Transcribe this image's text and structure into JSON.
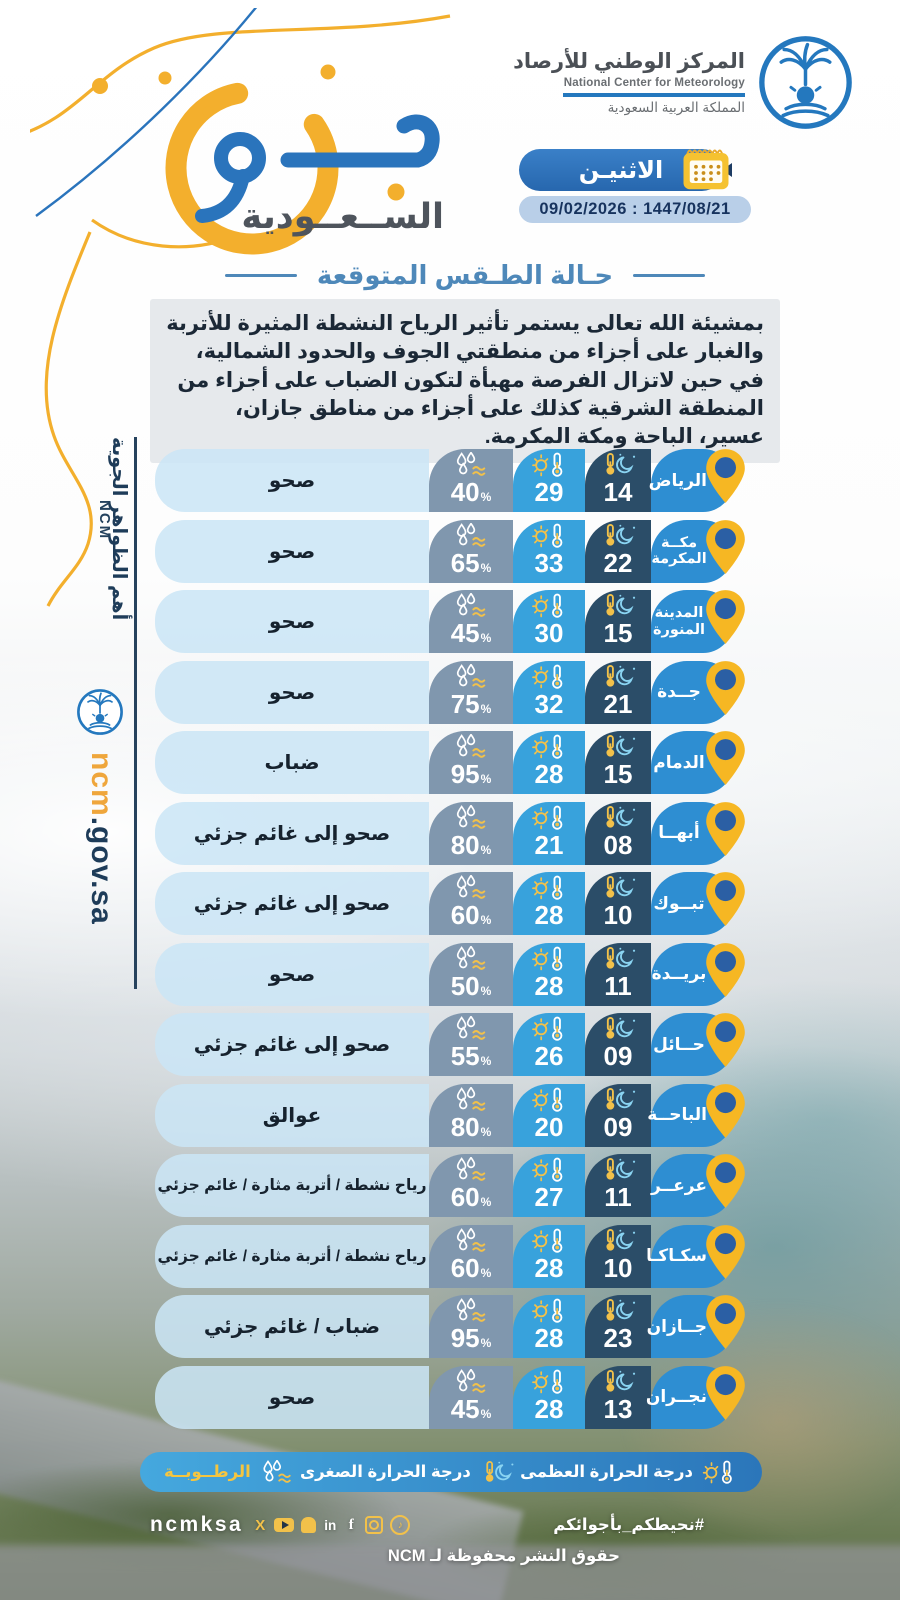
{
  "org": {
    "name_ar": "المركز الوطني للأرصاد",
    "name_en": "National Center for Meteorology",
    "country_ar": "المملكة العربية السعودية"
  },
  "brand": {
    "wordmark": "جو",
    "wordmark_sub": "الســعــودية"
  },
  "date": {
    "day": "الاثنيـن",
    "dates_line": "09/02/2026  :  1447/08/21"
  },
  "section": {
    "title": "حـالة الطـقس المتوقعة"
  },
  "forecast_text": "بمشيئة الله تعالى يستمر تأثير الرياح النشطة المثيرة للأتربة والغبار على أجزاء من منطقتي الجوف والحدود الشمالية، في حين لاتزال الفرصة مهيأة لتكون الضباب على أجزاء من المنطقة الشرقية كذلك على  أجزاء من مناطق جازان، عسير، الباحة ومكة المكرمة.",
  "sidebar": {
    "heading": "أهم الظواهر الجوية",
    "ncm": "NCM",
    "site_prefix": "ncm",
    "site_suffix": ".gov.sa"
  },
  "units": {
    "percent": "%"
  },
  "rows": [
    {
      "city": "الرياض",
      "min": "14",
      "max": "29",
      "humidity": "40",
      "condition": "صحو"
    },
    {
      "city": "مكــة\nالمكرمة",
      "min": "22",
      "max": "33",
      "humidity": "65",
      "condition": "صحو"
    },
    {
      "city": "المدينة\nالمنورة",
      "min": "15",
      "max": "30",
      "humidity": "45",
      "condition": "صحو"
    },
    {
      "city": "جــدة",
      "min": "21",
      "max": "32",
      "humidity": "75",
      "condition": "صحو"
    },
    {
      "city": "الدمام",
      "min": "15",
      "max": "28",
      "humidity": "95",
      "condition": "ضباب"
    },
    {
      "city": "أبهــا",
      "min": "08",
      "max": "21",
      "humidity": "80",
      "condition": "صحو إلى  غائم جزئي"
    },
    {
      "city": "تبــوك",
      "min": "10",
      "max": "28",
      "humidity": "60",
      "condition": "صحو إلى غائم جزئي"
    },
    {
      "city": "بريــدة",
      "min": "11",
      "max": "28",
      "humidity": "50",
      "condition": "صحو"
    },
    {
      "city": "حــائل",
      "min": "09",
      "max": "26",
      "humidity": "55",
      "condition": "صحو إلى غائم جزئي"
    },
    {
      "city": "الباحــة",
      "min": "09",
      "max": "20",
      "humidity": "80",
      "condition": "عوالق"
    },
    {
      "city": "عرعــر",
      "min": "11",
      "max": "27",
      "humidity": "60",
      "condition": "رياح نشطة / أتربة مثارة / غائم جزئي"
    },
    {
      "city": "سكـاكـا",
      "min": "10",
      "max": "28",
      "humidity": "60",
      "condition": "رياح نشطة / أتربة مثارة / غائم جزئي"
    },
    {
      "city": "جــازان",
      "min": "23",
      "max": "28",
      "humidity": "95",
      "condition": "ضباب / غائم جزئي"
    },
    {
      "city": "نجــران",
      "min": "13",
      "max": "28",
      "humidity": "45",
      "condition": "صحو"
    }
  ],
  "legend": {
    "max_label": "درجة الحرارة العظمى",
    "min_label": "درجة الحرارة الصغرى",
    "humidity_label": "الرطــوبــة"
  },
  "footer": {
    "handle": "ncmksa",
    "hashtag": "#نحيطكم_بأجوائكم",
    "copyright": "حقوق النشر محفوظة لـ NCM",
    "social_icons": [
      "x-icon",
      "youtube-icon",
      "snapchat-icon",
      "linkedin-icon",
      "facebook-icon",
      "instagram-icon",
      "tiktok-icon"
    ]
  },
  "colors": {
    "accent_blue": "#2E8ED2",
    "navy": "#2B4D68",
    "max_blue": "#38A2DC",
    "humidity_slate": "#8097AE",
    "light_blue": "#CBE5F6",
    "brand_yellow": "#F3AF2D",
    "legend_blue": "#3391CE",
    "pin_yellow": "#F6B723"
  }
}
